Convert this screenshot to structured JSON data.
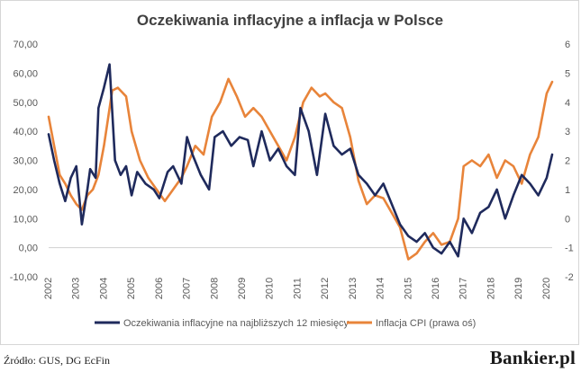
{
  "chart_data": {
    "type": "line",
    "title": "Oczekiwania inflacyjne a inflacja w Polsce",
    "x_ticks": [
      "2002",
      "2003",
      "2004",
      "2005",
      "2006",
      "2007",
      "2008",
      "2009",
      "2010",
      "2011",
      "2012",
      "2013",
      "2014",
      "2015",
      "2016",
      "2017",
      "2018",
      "2019",
      "2020"
    ],
    "left_axis": {
      "ticks": [
        "70,00",
        "60,00",
        "50,00",
        "40,00",
        "30,00",
        "20,00",
        "10,00",
        "0,00",
        "-10,00"
      ],
      "range": [
        -10,
        70
      ]
    },
    "right_axis": {
      "ticks": [
        "6",
        "5",
        "4",
        "3",
        "2",
        "1",
        "0",
        "-1",
        "-2"
      ],
      "range": [
        -2,
        6
      ]
    },
    "legend_position": "bottom",
    "grid": false,
    "series": [
      {
        "name": "Oczekiwania inflacyjne na najbliższych 12 miesięcy",
        "axis": "left",
        "color": "#1f2a5c",
        "x": [
          2002.0,
          2002.2,
          2002.4,
          2002.6,
          2002.8,
          2003.0,
          2003.2,
          2003.4,
          2003.5,
          2003.7,
          2003.8,
          2004.0,
          2004.2,
          2004.4,
          2004.6,
          2004.8,
          2005.0,
          2005.2,
          2005.5,
          2005.8,
          2006.0,
          2006.3,
          2006.5,
          2006.8,
          2007.0,
          2007.2,
          2007.5,
          2007.8,
          2008.0,
          2008.3,
          2008.6,
          2008.9,
          2009.2,
          2009.4,
          2009.7,
          2010.0,
          2010.3,
          2010.6,
          2010.9,
          2011.1,
          2011.4,
          2011.7,
          2012.0,
          2012.3,
          2012.6,
          2012.9,
          2013.2,
          2013.5,
          2013.8,
          2014.1,
          2014.4,
          2014.7,
          2015.0,
          2015.3,
          2015.6,
          2015.9,
          2016.2,
          2016.5,
          2016.8,
          2017.0,
          2017.3,
          2017.6,
          2017.9,
          2018.2,
          2018.5,
          2018.8,
          2019.1,
          2019.4,
          2019.7,
          2020.0,
          2020.2
        ],
        "values": [
          39,
          30,
          22,
          16,
          24,
          28,
          8,
          20,
          27,
          24,
          48,
          55,
          63,
          30,
          25,
          28,
          18,
          26,
          22,
          20,
          17,
          26,
          28,
          22,
          38,
          32,
          25,
          20,
          38,
          40,
          35,
          38,
          37,
          28,
          40,
          30,
          34,
          28,
          25,
          48,
          40,
          25,
          46,
          35,
          32,
          34,
          25,
          22,
          18,
          22,
          15,
          8,
          4,
          2,
          5,
          0,
          -2,
          2,
          -3,
          10,
          5,
          12,
          14,
          20,
          10,
          18,
          25,
          22,
          18,
          24,
          32
        ]
      },
      {
        "name": "Inflacja CPI (prawa oś)",
        "axis": "right",
        "color": "#e8843a",
        "x": [
          2002.0,
          2002.2,
          2002.4,
          2002.6,
          2002.8,
          2003.0,
          2003.2,
          2003.4,
          2003.6,
          2003.8,
          2004.0,
          2004.3,
          2004.5,
          2004.8,
          2005.0,
          2005.3,
          2005.6,
          2005.9,
          2006.2,
          2006.5,
          2006.8,
          2007.0,
          2007.3,
          2007.6,
          2007.9,
          2008.2,
          2008.5,
          2008.8,
          2009.1,
          2009.4,
          2009.7,
          2010.0,
          2010.3,
          2010.6,
          2010.9,
          2011.2,
          2011.5,
          2011.8,
          2012.0,
          2012.3,
          2012.6,
          2012.9,
          2013.2,
          2013.5,
          2013.8,
          2014.1,
          2014.4,
          2014.7,
          2015.0,
          2015.3,
          2015.6,
          2015.9,
          2016.2,
          2016.5,
          2016.8,
          2017.0,
          2017.3,
          2017.6,
          2017.9,
          2018.2,
          2018.5,
          2018.8,
          2019.1,
          2019.4,
          2019.7,
          2020.0,
          2020.2
        ],
        "values": [
          3.5,
          2.5,
          1.5,
          1.2,
          0.8,
          0.5,
          0.3,
          0.8,
          1.0,
          1.5,
          2.5,
          4.4,
          4.5,
          4.2,
          3.0,
          2.0,
          1.4,
          1.0,
          0.6,
          1.0,
          1.4,
          1.8,
          2.5,
          2.2,
          3.5,
          4.0,
          4.8,
          4.2,
          3.5,
          3.8,
          3.5,
          3.0,
          2.5,
          2.0,
          2.8,
          4.0,
          4.5,
          4.2,
          4.3,
          4.0,
          3.8,
          2.8,
          1.3,
          0.5,
          0.8,
          0.7,
          0.2,
          -0.3,
          -1.4,
          -1.2,
          -0.8,
          -0.5,
          -0.9,
          -0.8,
          0.0,
          1.8,
          2.0,
          1.8,
          2.2,
          1.4,
          2.0,
          1.8,
          1.2,
          2.2,
          2.8,
          4.3,
          4.7
        ]
      }
    ]
  },
  "footer": {
    "source": "Źródło: GUS, DG EcFin",
    "logo": "Bankier.pl"
  }
}
